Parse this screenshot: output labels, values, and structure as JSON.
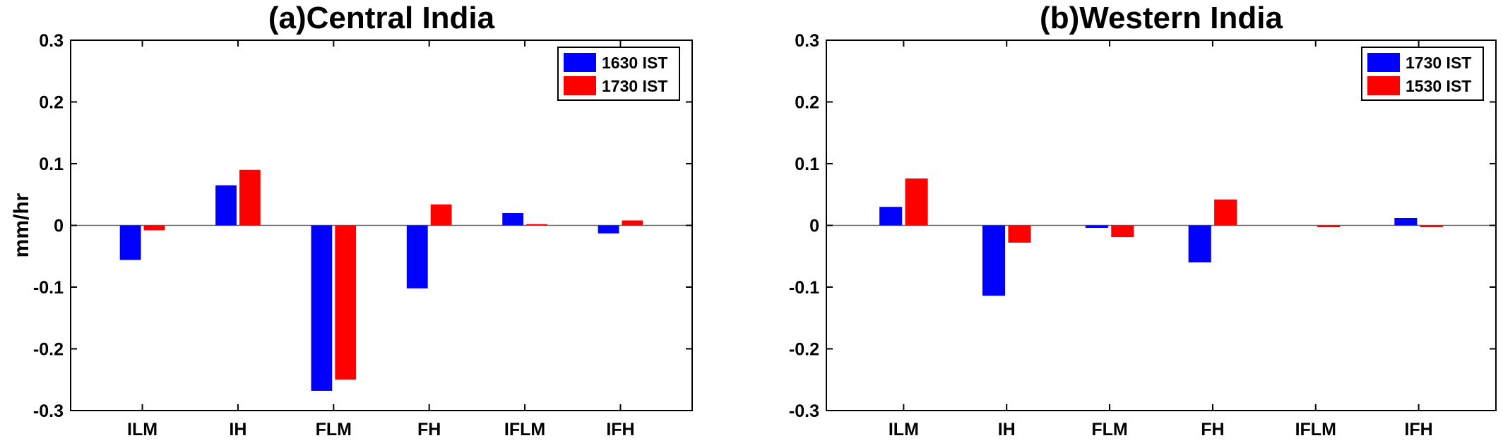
{
  "chart_data": [
    {
      "type": "bar",
      "title": "(a)Central India",
      "ylabel": "mm/hr",
      "xlabel": "",
      "ylim": [
        -0.3,
        0.3
      ],
      "yticks": [
        0.3,
        0.2,
        0.1,
        0,
        -0.1,
        -0.2,
        -0.3
      ],
      "ytick_labels": [
        "0.3",
        "0.2",
        "0.1",
        "0",
        "-0.1",
        "-0.2",
        "-0.3"
      ],
      "categories": [
        "ILM",
        "IH",
        "FLM",
        "FH",
        "IFLM",
        "IFH"
      ],
      "series": [
        {
          "name": "1630 IST",
          "color": "#0000ff",
          "values": [
            -0.056,
            0.065,
            -0.268,
            -0.102,
            0.02,
            -0.013
          ]
        },
        {
          "name": "1730 IST",
          "color": "#ff0000",
          "values": [
            -0.008,
            0.09,
            -0.25,
            0.034,
            0.002,
            0.008
          ]
        }
      ],
      "legend": "top-right",
      "grid": false,
      "zero_line": true
    },
    {
      "type": "bar",
      "title": "(b)Western India",
      "ylabel": "",
      "xlabel": "",
      "ylim": [
        -0.3,
        0.3
      ],
      "yticks": [
        0.3,
        0.2,
        0.1,
        0,
        -0.1,
        -0.2,
        -0.3
      ],
      "ytick_labels": [
        "0.3",
        "0.2",
        "0.1",
        "0",
        "-0.1",
        "-0.2",
        "-0.3"
      ],
      "categories": [
        "ILM",
        "IH",
        "FLM",
        "FH",
        "IFLM",
        "IFH"
      ],
      "series": [
        {
          "name": "1730 IST",
          "color": "#0000ff",
          "values": [
            0.03,
            -0.114,
            -0.004,
            -0.06,
            0.0,
            0.012
          ]
        },
        {
          "name": "1530 IST",
          "color": "#ff0000",
          "values": [
            0.076,
            -0.028,
            -0.019,
            0.042,
            -0.003,
            -0.003
          ]
        }
      ],
      "legend": "top-right",
      "grid": false,
      "zero_line": true
    }
  ]
}
